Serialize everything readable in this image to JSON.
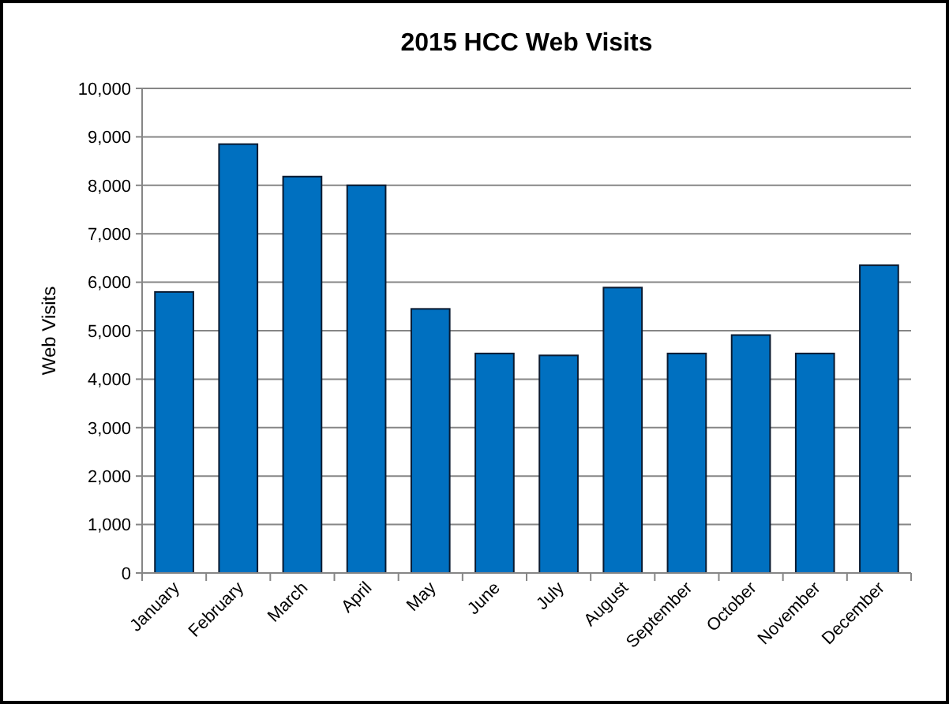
{
  "chart_data": {
    "type": "bar",
    "title": "2015 HCC Web Visits",
    "ylabel": "Web Visits",
    "categories": [
      "January",
      "February",
      "March",
      "April",
      "May",
      "June",
      "July",
      "August",
      "September",
      "October",
      "November",
      "December"
    ],
    "values": [
      5800,
      8850,
      8180,
      8000,
      5450,
      4530,
      4490,
      5890,
      4530,
      4910,
      4530,
      6350
    ],
    "color": "#0070c0",
    "ylim": [
      0,
      10000
    ],
    "yticks": [
      {
        "value": 0,
        "label": "0"
      },
      {
        "value": 1000,
        "label": "1,000"
      },
      {
        "value": 2000,
        "label": "2,000"
      },
      {
        "value": 3000,
        "label": "3,000"
      },
      {
        "value": 4000,
        "label": "4,000"
      },
      {
        "value": 5000,
        "label": "5,000"
      },
      {
        "value": 6000,
        "label": "6,000"
      },
      {
        "value": 7000,
        "label": "7,000"
      },
      {
        "value": 8000,
        "label": "8,000"
      },
      {
        "value": 9000,
        "label": "9,000"
      },
      {
        "value": 10000,
        "label": "10,000"
      }
    ],
    "grid": "y"
  }
}
